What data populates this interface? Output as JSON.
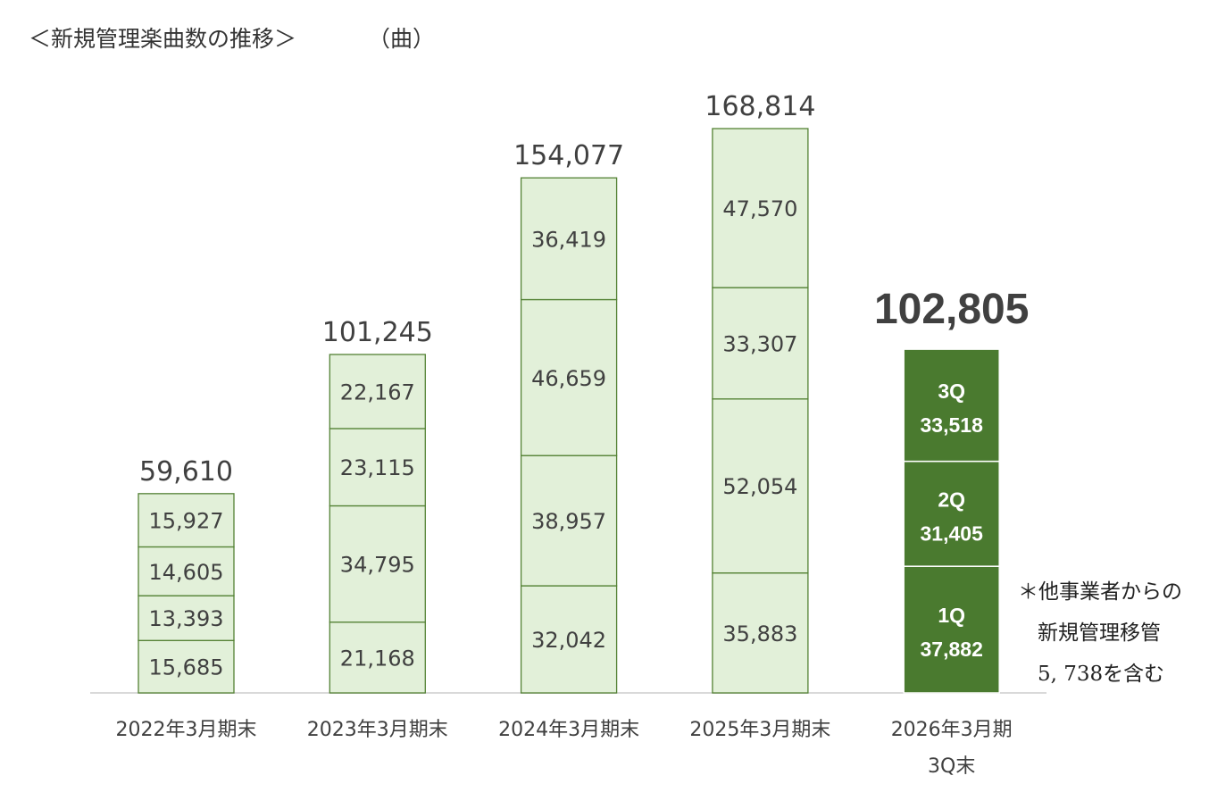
{
  "header": {
    "title": "＜新規管理楽曲数の推移＞",
    "unit": "（曲）"
  },
  "note": {
    "line1": "＊他事業者からの",
    "line2": "新規管理移管",
    "line3": "5, 738を含む"
  },
  "colors": {
    "light_fill": "#e2f0d9",
    "light_stroke": "#548235",
    "dark_fill": "#4a7a2f",
    "baseline": "#d9d9d9",
    "text": "#404040"
  },
  "chart_data": {
    "type": "bar",
    "stacked": true,
    "title": "＜新規管理楽曲数の推移＞",
    "ylabel": "（曲）",
    "ylim": [
      0,
      168814
    ],
    "grid": false,
    "legend": "none",
    "categories": [
      [
        "2022年3月期末"
      ],
      [
        "2023年3月期末"
      ],
      [
        "2024年3月期末"
      ],
      [
        "2025年3月期末"
      ],
      [
        "2026年3月期",
        "3Q末"
      ]
    ],
    "bars": [
      {
        "total": "59,610",
        "highlight": false,
        "segments": [
          {
            "value": 15685,
            "label": "15,685"
          },
          {
            "value": 13393,
            "label": "13,393"
          },
          {
            "value": 14605,
            "label": "14,605"
          },
          {
            "value": 15927,
            "label": "15,927"
          }
        ]
      },
      {
        "total": "101,245",
        "highlight": false,
        "segments": [
          {
            "value": 21168,
            "label": "21,168"
          },
          {
            "value": 34795,
            "label": "34,795"
          },
          {
            "value": 23115,
            "label": "23,115"
          },
          {
            "value": 22167,
            "label": "22,167"
          }
        ]
      },
      {
        "total": "154,077",
        "highlight": false,
        "segments": [
          {
            "value": 32042,
            "label": "32,042"
          },
          {
            "value": 38957,
            "label": "38,957"
          },
          {
            "value": 46659,
            "label": "46,659"
          },
          {
            "value": 36419,
            "label": "36,419"
          }
        ]
      },
      {
        "total": "168,814",
        "highlight": false,
        "segments": [
          {
            "value": 35883,
            "label": "35,883"
          },
          {
            "value": 52054,
            "label": "52,054"
          },
          {
            "value": 33307,
            "label": "33,307"
          },
          {
            "value": 47570,
            "label": "47,570"
          }
        ]
      },
      {
        "total": "102,805",
        "highlight": true,
        "segments": [
          {
            "value": 37882,
            "quarter": "1Q",
            "label": "37,882"
          },
          {
            "value": 31405,
            "quarter": "2Q",
            "label": "31,405"
          },
          {
            "value": 33518,
            "quarter": "3Q",
            "label": "33,518"
          }
        ]
      }
    ]
  }
}
